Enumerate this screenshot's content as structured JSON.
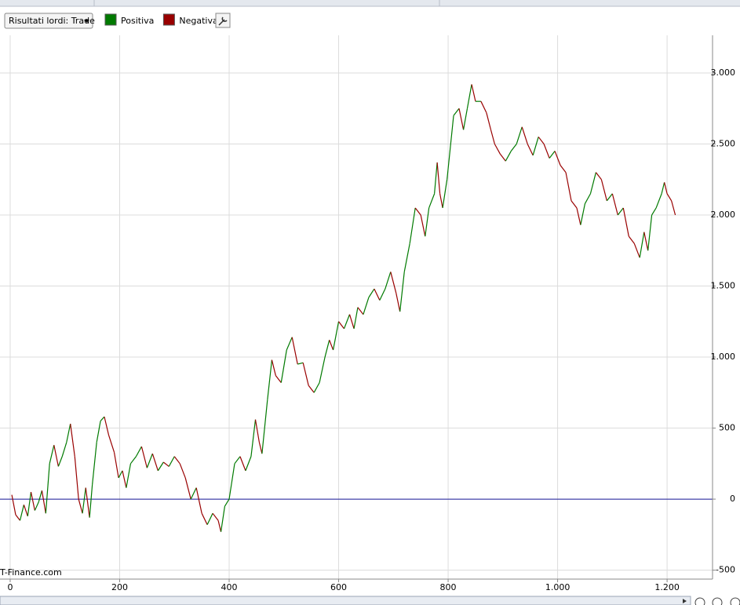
{
  "toolbar": {
    "dropdown": "Risultati lordi: Trade"
  },
  "chart_data": {
    "type": "line",
    "legend": [
      {
        "name": "Positiva",
        "color": "#007a00"
      },
      {
        "name": "Negativa",
        "color": "#990000"
      }
    ],
    "watermark": "T-Finance.com",
    "x": [
      3,
      10,
      18,
      25,
      32,
      38,
      45,
      52,
      58,
      65,
      72,
      80,
      88,
      95,
      103,
      110,
      118,
      125,
      132,
      138,
      145,
      150,
      158,
      165,
      172,
      180,
      190,
      198,
      205,
      212,
      220,
      230,
      240,
      250,
      260,
      270,
      280,
      290,
      300,
      310,
      320,
      330,
      340,
      350,
      360,
      370,
      380,
      385,
      392,
      400,
      410,
      420,
      430,
      440,
      448,
      455,
      460,
      470,
      478,
      485,
      495,
      505,
      515,
      525,
      535,
      545,
      555,
      565,
      575,
      583,
      590,
      600,
      610,
      620,
      628,
      635,
      645,
      655,
      665,
      675,
      685,
      695,
      705,
      712,
      720,
      730,
      740,
      750,
      758,
      765,
      775,
      780,
      785,
      790,
      798,
      810,
      820,
      828,
      835,
      843,
      850,
      860,
      870,
      878,
      885,
      895,
      905,
      915,
      925,
      935,
      945,
      955,
      965,
      975,
      985,
      995,
      1005,
      1015,
      1025,
      1035,
      1042,
      1050,
      1060,
      1070,
      1080,
      1090,
      1100,
      1110,
      1120,
      1130,
      1140,
      1150,
      1158,
      1165,
      1172,
      1180,
      1190,
      1195,
      1200,
      1208,
      1215
    ],
    "values": [
      30,
      -110,
      -150,
      -40,
      -120,
      50,
      -80,
      -20,
      60,
      -100,
      250,
      380,
      230,
      300,
      400,
      530,
      300,
      0,
      -100,
      80,
      -130,
      100,
      400,
      550,
      580,
      450,
      330,
      150,
      200,
      80,
      250,
      300,
      370,
      220,
      320,
      200,
      260,
      230,
      300,
      250,
      150,
      0,
      80,
      -100,
      -180,
      -100,
      -150,
      -230,
      -50,
      0,
      250,
      300,
      200,
      300,
      560,
      400,
      320,
      700,
      980,
      870,
      820,
      1050,
      1140,
      950,
      960,
      800,
      750,
      820,
      1000,
      1120,
      1050,
      1250,
      1200,
      1300,
      1200,
      1350,
      1300,
      1420,
      1480,
      1400,
      1480,
      1600,
      1450,
      1320,
      1600,
      1800,
      2050,
      2000,
      1850,
      2050,
      2150,
      2370,
      2150,
      2050,
      2250,
      2700,
      2750,
      2600,
      2750,
      2920,
      2800,
      2800,
      2720,
      2600,
      2500,
      2430,
      2380,
      2450,
      2500,
      2620,
      2500,
      2420,
      2550,
      2500,
      2400,
      2450,
      2350,
      2300,
      2100,
      2050,
      1930,
      2080,
      2150,
      2300,
      2250,
      2100,
      2150,
      2000,
      2050,
      1850,
      1800,
      1700,
      1880,
      1750,
      2000,
      2050,
      2150,
      2230,
      2150,
      2100,
      2000
    ],
    "xlim": [
      -18.6,
      1283
    ],
    "ylim": [
      -563,
      3265
    ],
    "xticks": [
      0,
      200,
      400,
      600,
      800,
      {
        "value": 1000,
        "label": "1.000"
      },
      {
        "value": 1200,
        "label": "1.200"
      }
    ],
    "yticks": [
      {
        "value": -500,
        "label": "-500"
      },
      0,
      500,
      {
        "value": 1000,
        "label": "1.000"
      },
      {
        "value": 1500,
        "label": "1.500"
      },
      {
        "value": 2000,
        "label": "2.000"
      },
      {
        "value": 2500,
        "label": "2.500"
      },
      {
        "value": 3000,
        "label": "3.000"
      }
    ],
    "reference_line": 0,
    "reference_color": "#1a1a99",
    "grid": true
  }
}
